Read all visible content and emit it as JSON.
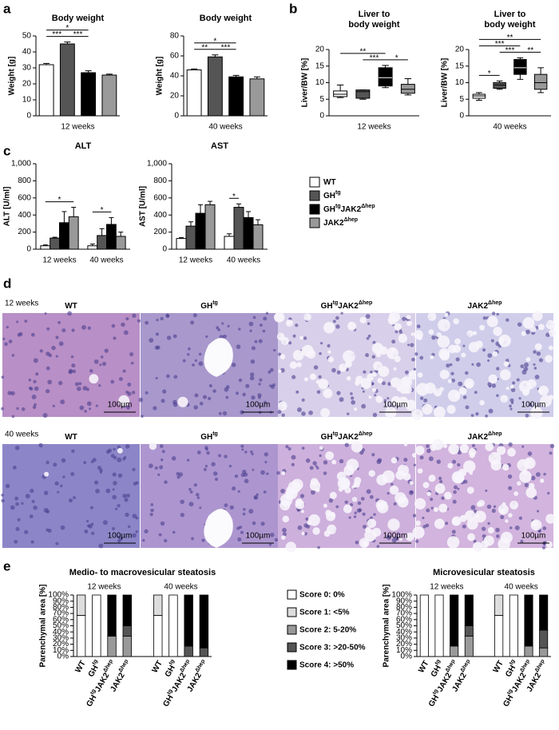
{
  "panels": [
    "a",
    "b",
    "c",
    "d",
    "e"
  ],
  "chart_data": [
    {
      "type": "bar",
      "title": "Body weight",
      "ylabel": "Weight [g]",
      "xlabel": "12 weeks",
      "values": [
        32,
        45,
        27,
        25.5
      ],
      "errors": [
        0.8,
        1.2,
        1.2,
        0.6
      ],
      "colors": [
        "#ffffff",
        "#555555",
        "#000000",
        "#999999"
      ],
      "ylim": [
        0,
        50
      ],
      "yticks": [
        0,
        10,
        20,
        30,
        40,
        50
      ],
      "annotations": [
        {
          "text": "***",
          "from": 0,
          "to": 1
        },
        {
          "text": "***",
          "from": 1,
          "to": 2
        },
        {
          "text": "*",
          "from": 0,
          "to": 2
        }
      ]
    },
    {
      "type": "bar",
      "title": "Body weight",
      "ylabel": "Weight [g]",
      "xlabel": "40 weeks",
      "values": [
        46,
        59,
        39,
        37
      ],
      "errors": [
        1,
        2,
        1.5,
        2
      ],
      "colors": [
        "#ffffff",
        "#555555",
        "#000000",
        "#999999"
      ],
      "ylim": [
        0,
        80
      ],
      "yticks": [
        0,
        20,
        40,
        60,
        80
      ],
      "annotations": [
        {
          "text": "**",
          "from": 0,
          "to": 1
        },
        {
          "text": "***",
          "from": 1,
          "to": 2
        },
        {
          "text": "*",
          "from": 0,
          "to": 2
        }
      ]
    },
    {
      "type": "box",
      "title": [
        "Liver to",
        "body weight"
      ],
      "ylabel": "Liver/BW [%]",
      "xlabel": "12 weeks",
      "boxes": [
        {
          "min": 5.5,
          "q1": 5.8,
          "median": 6.5,
          "q3": 7.5,
          "max": 9.3
        },
        {
          "min": 5,
          "q1": 5.3,
          "median": 7.3,
          "q3": 7.8,
          "max": 7.8
        },
        {
          "min": 8.5,
          "q1": 9,
          "median": 11.5,
          "q3": 14.5,
          "max": 15.2
        },
        {
          "min": 6.3,
          "q1": 6.8,
          "median": 8,
          "q3": 9.5,
          "max": 11.2
        }
      ],
      "colors": [
        "#ffffff",
        "#555555",
        "#000000",
        "#999999"
      ],
      "ylim": [
        0,
        20
      ],
      "yticks": [
        0,
        5,
        10,
        15,
        20
      ],
      "annotations": [
        {
          "text": "***",
          "from": 1,
          "to": 2
        },
        {
          "text": "*",
          "from": 2,
          "to": 3
        },
        {
          "text": "**",
          "from": 0,
          "to": 2
        }
      ]
    },
    {
      "type": "box",
      "title": [
        "Liver to",
        "body weight"
      ],
      "ylabel": "Liver/BW [%]",
      "xlabel": "40 weeks",
      "boxes": [
        {
          "min": 4.7,
          "q1": 5.3,
          "median": 6,
          "q3": 6.5,
          "max": 7
        },
        {
          "min": 8,
          "q1": 8.3,
          "median": 9.3,
          "q3": 10,
          "max": 10.5
        },
        {
          "min": 11,
          "q1": 12.5,
          "median": 14.5,
          "q3": 17,
          "max": 17.5
        },
        {
          "min": 7,
          "q1": 8,
          "median": 10,
          "q3": 12.5,
          "max": 14.5
        }
      ],
      "colors": [
        "#ffffff",
        "#555555",
        "#000000",
        "#999999"
      ],
      "ylim": [
        0,
        20
      ],
      "yticks": [
        0,
        5,
        10,
        15,
        20
      ],
      "annotations": [
        {
          "text": "*",
          "from": 0,
          "to": 1
        },
        {
          "text": "***",
          "from": 1,
          "to": 2
        },
        {
          "text": "**",
          "from": 2,
          "to": 3
        },
        {
          "text": "***",
          "from": 0,
          "to": 2
        },
        {
          "text": "**",
          "from": 0,
          "to": 3
        }
      ]
    },
    {
      "type": "grouped_bar",
      "title": "ALT",
      "ylabel": "ALT [U/ml]",
      "categories": [
        "12 weeks",
        "40 weeks"
      ],
      "series": [
        {
          "name": [
            "WT"
          ],
          "color": "#ffffff",
          "values": [
            40,
            40
          ],
          "errors": [
            10,
            20
          ]
        },
        {
          "name": [
            "GH",
            "tg"
          ],
          "color": "#555555",
          "values": [
            130,
            160
          ],
          "errors": [
            10,
            80
          ]
        },
        {
          "name": [
            "GH",
            "tg",
            "JAK2",
            "Δhep"
          ],
          "color": "#000000",
          "values": [
            310,
            290
          ],
          "errors": [
            130,
            80
          ]
        },
        {
          "name": [
            "JAK2",
            "Δhep"
          ],
          "color": "#999999",
          "values": [
            380,
            150
          ],
          "errors": [
            110,
            50
          ]
        }
      ],
      "ylim": [
        0,
        1000
      ],
      "yticks": [
        0,
        200,
        400,
        600,
        800,
        {
          "value": 1000,
          "label": "1,000"
        }
      ],
      "annotations": [
        {
          "text": "*",
          "group": 0,
          "from": 0,
          "to": 3
        },
        {
          "text": "*",
          "group": 1,
          "from": 0,
          "to": 2
        }
      ]
    },
    {
      "type": "grouped_bar",
      "title": "AST",
      "ylabel": "AST [U/ml]",
      "categories": [
        "12 weeks",
        "40 weeks"
      ],
      "series": [
        {
          "color": "#ffffff",
          "values": [
            125,
            150
          ],
          "errors": [
            10,
            30
          ]
        },
        {
          "color": "#555555",
          "values": [
            270,
            490
          ],
          "errors": [
            50,
            40
          ]
        },
        {
          "color": "#000000",
          "values": [
            420,
            370
          ],
          "errors": [
            100,
            70
          ]
        },
        {
          "color": "#999999",
          "values": [
            520,
            285
          ],
          "errors": [
            40,
            60
          ]
        }
      ],
      "ylim": [
        0,
        1000
      ],
      "yticks": [
        0,
        200,
        400,
        600,
        800,
        {
          "value": 1000,
          "label": "1,000"
        }
      ],
      "annotations": [
        {
          "text": "*",
          "group": 1,
          "from": 0,
          "to": 1
        }
      ]
    },
    {
      "type": "stacked_bar",
      "title": "Medio- to macrovesicular steatosis",
      "ylabel": "Parenchymal area [%]",
      "groups": [
        "12 weeks",
        "40 weeks"
      ],
      "categories": [
        [
          "WT"
        ],
        [
          "GH",
          "tg"
        ],
        [
          "GH",
          "tg",
          "JAK2",
          "Δhep"
        ],
        [
          "JAK2",
          "Δhep"
        ],
        [
          "WT"
        ],
        [
          "GH",
          "tg"
        ],
        [
          "GH",
          "tg",
          "JAK2",
          "Δhep"
        ],
        [
          "JAK2",
          "Δhep"
        ]
      ],
      "series": [
        {
          "name": "Score 0: 0%",
          "color": "#ffffff",
          "values": [
            67,
            100,
            0,
            0,
            67,
            100,
            0,
            0
          ]
        },
        {
          "name": "Score 1: <5%",
          "color": "#dddddd",
          "values": [
            33,
            0,
            0,
            0,
            33,
            0,
            0,
            0
          ]
        },
        {
          "name": "Score 2: 5-20%",
          "color": "#999999",
          "values": [
            0,
            0,
            33,
            33,
            0,
            0,
            0,
            0
          ]
        },
        {
          "name": "Score 3: >20-50%",
          "color": "#555555",
          "values": [
            0,
            0,
            0,
            17,
            0,
            0,
            17,
            14
          ]
        },
        {
          "name": "Score 4: >50%",
          "color": "#000000",
          "values": [
            0,
            0,
            67,
            50,
            0,
            0,
            83,
            86
          ]
        }
      ],
      "ylim": [
        0,
        100
      ],
      "yticks": [
        {
          "value": 0,
          "label": "0%"
        },
        {
          "value": 10,
          "label": "10%"
        },
        {
          "value": 20,
          "label": "20%"
        },
        {
          "value": 30,
          "label": "30%"
        },
        {
          "value": 40,
          "label": "40%"
        },
        {
          "value": 50,
          "label": "50%"
        },
        {
          "value": 60,
          "label": "60%"
        },
        {
          "value": 70,
          "label": "70%"
        },
        {
          "value": 80,
          "label": "80%"
        },
        {
          "value": 90,
          "label": "90%"
        },
        {
          "value": 100,
          "label": "100%"
        }
      ]
    },
    {
      "type": "stacked_bar",
      "title": "Microvesicular steatosis",
      "ylabel": "Parenchymal area [%]",
      "groups": [
        "12 weeks",
        "40 weeks"
      ],
      "categories": [
        [
          "WT"
        ],
        [
          "GH",
          "tg"
        ],
        [
          "GH",
          "tg",
          "JAK2",
          "Δhep"
        ],
        [
          "JAK2",
          "Δhep"
        ],
        [
          "WT"
        ],
        [
          "GH",
          "tg"
        ],
        [
          "GH",
          "tg",
          "JAK2",
          "Δhep"
        ],
        [
          "JAK2",
          "Δhep"
        ]
      ],
      "series": [
        {
          "color": "#ffffff",
          "values": [
            100,
            100,
            0,
            0,
            67,
            100,
            0,
            0
          ]
        },
        {
          "color": "#dddddd",
          "values": [
            0,
            0,
            0,
            0,
            33,
            0,
            0,
            0
          ]
        },
        {
          "color": "#999999",
          "values": [
            0,
            0,
            17,
            33,
            0,
            0,
            17,
            14
          ]
        },
        {
          "color": "#555555",
          "values": [
            0,
            0,
            0,
            17,
            0,
            0,
            0,
            29
          ]
        },
        {
          "color": "#000000",
          "values": [
            0,
            0,
            83,
            50,
            0,
            0,
            83,
            57
          ]
        }
      ],
      "ylim": [
        0,
        100
      ],
      "yticks": [
        {
          "value": 0,
          "label": "0%"
        },
        {
          "value": 10,
          "label": "10%"
        },
        {
          "value": 20,
          "label": "20%"
        },
        {
          "value": 30,
          "label": "30%"
        },
        {
          "value": 40,
          "label": "40%"
        },
        {
          "value": 50,
          "label": "50%"
        },
        {
          "value": 60,
          "label": "60%"
        },
        {
          "value": 70,
          "label": "70%"
        },
        {
          "value": 80,
          "label": "80%"
        },
        {
          "value": 90,
          "label": "90%"
        },
        {
          "value": 100,
          "label": "100%"
        }
      ]
    }
  ],
  "histology": {
    "rows": [
      "12 weeks",
      "40 weeks"
    ],
    "scale_bar": "100µm"
  }
}
